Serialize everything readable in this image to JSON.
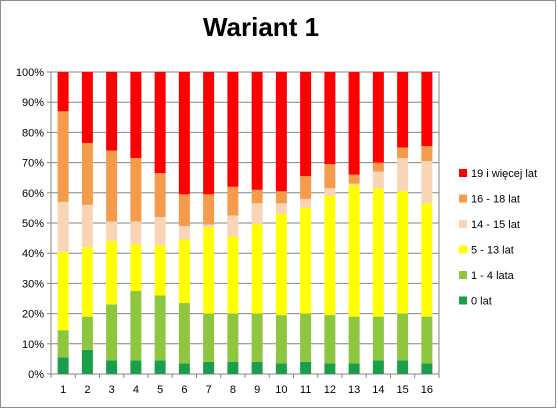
{
  "chart_data": {
    "type": "bar",
    "stacked": true,
    "percent": true,
    "title": "Wariant 1",
    "categories": [
      "1",
      "2",
      "3",
      "4",
      "5",
      "6",
      "7",
      "8",
      "9",
      "10",
      "11",
      "12",
      "13",
      "14",
      "15",
      "16"
    ],
    "y_ticks": [
      "0%",
      "10%",
      "20%",
      "30%",
      "40%",
      "50%",
      "60%",
      "70%",
      "80%",
      "90%",
      "100%"
    ],
    "ylim": [
      0,
      100
    ],
    "grid": true,
    "legend_position": "right",
    "series": [
      {
        "name": "0 lat",
        "color": "#1a9e4a",
        "values": [
          5.5,
          8,
          4.5,
          4.5,
          4.5,
          3.5,
          4,
          4,
          4,
          3.5,
          4,
          3.5,
          3.5,
          4.5,
          4.5,
          3.5
        ]
      },
      {
        "name": "1 - 4 lata",
        "color": "#8ec63f",
        "values": [
          9,
          11,
          18.5,
          23,
          21.5,
          20,
          16,
          16,
          16,
          16,
          16,
          16,
          15.5,
          14.5,
          15.5,
          15.5
        ]
      },
      {
        "name": "5 - 13 lat",
        "color": "#ffff00",
        "values": [
          26,
          23,
          21,
          15.5,
          16.5,
          21,
          28.5,
          25.5,
          29.5,
          33.5,
          35,
          39.5,
          43.5,
          42.5,
          40.5,
          37.5
        ]
      },
      {
        "name": "14 - 15 lat",
        "color": "#fad5b5",
        "values": [
          16.5,
          14,
          6.5,
          7.5,
          9.5,
          4.5,
          1,
          7,
          7,
          3.5,
          3,
          2.5,
          0.5,
          5.5,
          11,
          14
        ]
      },
      {
        "name": "16 - 18 lat",
        "color": "#f59b4c",
        "values": [
          30,
          20.5,
          23.5,
          21,
          14.5,
          10.5,
          10,
          9.5,
          4.5,
          4,
          7.5,
          8,
          3,
          3,
          3.5,
          5
        ]
      },
      {
        "name": "19 i więcej lat",
        "color": "#ff0000",
        "values": [
          13,
          23.5,
          26,
          28.5,
          33.5,
          40.5,
          40.5,
          38,
          39,
          39.5,
          34.5,
          30.5,
          34,
          30,
          25,
          24.5
        ]
      }
    ]
  }
}
